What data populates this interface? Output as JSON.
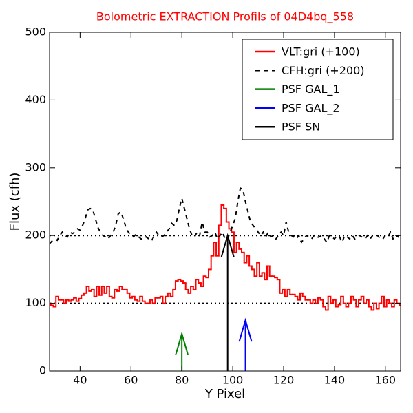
{
  "chart_data": {
    "type": "line",
    "title": "Bolometric EXTRACTION Profils of 04D4bq_558",
    "title_color": "#ff0000",
    "x_label": "Y Pixel",
    "y_label": "Flux (cfh)",
    "xlim": [
      28,
      166
    ],
    "ylim": [
      0,
      500
    ],
    "xticks": [
      40,
      60,
      80,
      100,
      120,
      140,
      160
    ],
    "yticks": [
      0,
      100,
      200,
      300,
      400,
      500
    ],
    "legend": "upper right",
    "x": [
      28,
      29,
      30,
      31,
      32,
      33,
      34,
      35,
      36,
      37,
      38,
      39,
      40,
      41,
      42,
      43,
      44,
      45,
      46,
      47,
      48,
      49,
      50,
      51,
      52,
      53,
      54,
      55,
      56,
      57,
      58,
      59,
      60,
      61,
      62,
      63,
      64,
      65,
      66,
      67,
      68,
      69,
      70,
      71,
      72,
      73,
      74,
      75,
      76,
      77,
      78,
      79,
      80,
      81,
      82,
      83,
      84,
      85,
      86,
      87,
      88,
      89,
      90,
      91,
      92,
      93,
      94,
      95,
      96,
      97,
      98,
      99,
      100,
      101,
      102,
      103,
      104,
      105,
      106,
      107,
      108,
      109,
      110,
      111,
      112,
      113,
      114,
      115,
      116,
      117,
      118,
      119,
      120,
      121,
      122,
      123,
      124,
      125,
      126,
      127,
      128,
      129,
      130,
      131,
      132,
      133,
      134,
      135,
      136,
      137,
      138,
      139,
      140,
      141,
      142,
      143,
      144,
      145,
      146,
      147,
      148,
      149,
      150,
      151,
      152,
      153,
      154,
      155,
      156,
      157,
      158,
      159,
      160,
      161,
      162,
      163,
      164,
      165,
      166
    ],
    "series": [
      {
        "name": "VLT:gri (+100)",
        "color": "#ff0000",
        "style": "steps",
        "values": [
          100,
          97,
          95,
          110,
          105,
          105,
          100,
          105,
          103,
          105,
          108,
          103,
          107,
          112,
          115,
          125,
          118,
          120,
          110,
          125,
          112,
          125,
          115,
          125,
          110,
          108,
          120,
          118,
          125,
          120,
          120,
          115,
          108,
          110,
          105,
          103,
          110,
          103,
          100,
          100,
          105,
          100,
          108,
          108,
          110,
          100,
          110,
          115,
          110,
          120,
          133,
          135,
          133,
          130,
          120,
          115,
          125,
          120,
          135,
          130,
          125,
          140,
          138,
          150,
          170,
          190,
          170,
          215,
          245,
          240,
          220,
          210,
          205,
          175,
          190,
          180,
          175,
          160,
          170,
          155,
          150,
          140,
          160,
          140,
          145,
          135,
          155,
          140,
          140,
          138,
          135,
          115,
          120,
          110,
          120,
          113,
          113,
          110,
          105,
          115,
          110,
          105,
          105,
          100,
          105,
          100,
          108,
          105,
          95,
          90,
          110,
          100,
          105,
          95,
          98,
          110,
          100,
          95,
          100,
          110,
          105,
          95,
          105,
          110,
          100,
          105,
          95,
          90,
          100,
          92,
          100,
          110,
          95,
          105,
          100,
          95,
          105,
          100,
          97
        ]
      },
      {
        "name": "CFH:gri (+200)",
        "color": "#000000",
        "style": "dashed",
        "values": [
          188,
          192,
          195,
          193,
          200,
          205,
          200,
          198,
          205,
          203,
          205,
          210,
          208,
          215,
          225,
          238,
          240,
          238,
          225,
          212,
          205,
          200,
          198,
          195,
          200,
          205,
          215,
          232,
          235,
          225,
          212,
          205,
          200,
          198,
          202,
          198,
          195,
          195,
          198,
          195,
          192,
          198,
          205,
          200,
          198,
          200,
          205,
          210,
          218,
          215,
          222,
          240,
          255,
          240,
          225,
          210,
          200,
          198,
          205,
          200,
          220,
          205,
          205,
          198,
          200,
          205,
          195,
          200,
          205,
          195,
          195,
          205,
          215,
          225,
          250,
          270,
          268,
          250,
          235,
          220,
          215,
          210,
          205,
          200,
          205,
          198,
          205,
          198,
          200,
          195,
          200,
          205,
          200,
          220,
          205,
          200,
          198,
          195,
          200,
          190,
          195,
          200,
          198,
          195,
          200,
          197,
          198,
          200,
          195,
          190,
          200,
          198,
          195,
          200,
          198,
          190,
          200,
          198,
          195,
          200,
          195,
          198,
          200,
          197,
          195,
          200,
          195,
          200,
          198,
          200,
          195,
          195,
          200,
          198,
          205,
          195,
          200,
          198,
          205
        ]
      }
    ],
    "reference_lines": [
      100,
      200
    ],
    "arrows": [
      {
        "name": "PSF GAL_1",
        "color": "#008000",
        "x": 80,
        "value": 55
      },
      {
        "name": "PSF GAL_2",
        "color": "#0000ff",
        "x": 105,
        "value": 75
      },
      {
        "name": "PSF SN",
        "color": "#000000",
        "x": 98,
        "value": 200
      }
    ]
  }
}
